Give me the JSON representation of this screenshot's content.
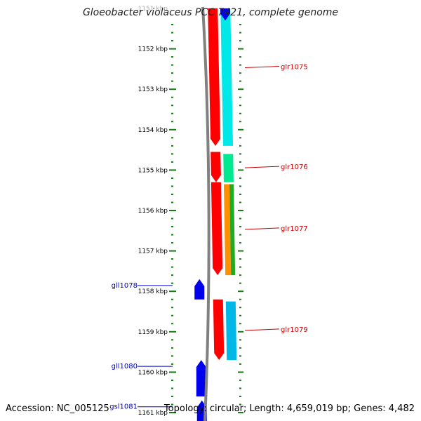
{
  "title": "Gloeobacter violaceus PCC 7421, complete genome",
  "accession": "Accession: NC_005125",
  "summary": "Topology: circular; Length: 4,659,019 bp; Genes: 4,482",
  "colors": {
    "tick": "#1a7a1a",
    "backbone": "#808080",
    "forward_label": "#cc0000",
    "reverse_label": "#0000bb",
    "forward_gene": "#ff0000",
    "reverse_gene": "#0000ee"
  },
  "ruler": [
    {
      "kbp": 1151,
      "label": "1151 kbp"
    },
    {
      "kbp": 1152,
      "label": "1152 kbp"
    },
    {
      "kbp": 1153,
      "label": "1153 kbp"
    },
    {
      "kbp": 1154,
      "label": "1154 kbp"
    },
    {
      "kbp": 1155,
      "label": "1155 kbp"
    },
    {
      "kbp": 1156,
      "label": "1156 kbp"
    },
    {
      "kbp": 1157,
      "label": "1157 kbp"
    },
    {
      "kbp": 1158,
      "label": "1158 kbp"
    },
    {
      "kbp": 1159,
      "label": "1159 kbp"
    },
    {
      "kbp": 1160,
      "label": "1160 kbp"
    },
    {
      "kbp": 1161,
      "label": "1161 kbp"
    }
  ],
  "genes": [
    {
      "name": "glr1075",
      "strand": "+",
      "start_kbp": 1150.5,
      "end_kbp": 1154.4,
      "color": "#ff0000",
      "feature_color": "#00e8e8"
    },
    {
      "name": "glr1076",
      "strand": "+",
      "start_kbp": 1154.55,
      "end_kbp": 1155.3,
      "color": "#ff0000",
      "feature_color": "#00e890"
    },
    {
      "name": "glr1077",
      "strand": "+",
      "start_kbp": 1155.3,
      "end_kbp": 1157.6,
      "color": "#ff0000",
      "feature_color": "#ff9000",
      "feature_color2": "#22aa22"
    },
    {
      "name": "gll1078",
      "strand": "-",
      "start_kbp": 1157.7,
      "end_kbp": 1158.2,
      "color": "#0000ee"
    },
    {
      "name": "glr1079",
      "strand": "+",
      "start_kbp": 1158.2,
      "end_kbp": 1159.7,
      "color": "#ff0000",
      "feature_color": "#00b8e8"
    },
    {
      "name": "gll1080",
      "strand": "-",
      "start_kbp": 1159.7,
      "end_kbp": 1160.6,
      "color": "#0000ee"
    },
    {
      "name": "gsl1081",
      "strand": "-",
      "start_kbp": 1160.7,
      "end_kbp": 1161.3,
      "color": "#0000ee"
    }
  ],
  "top_reverse_gene": {
    "start_kbp": 1150.5,
    "end_kbp": 1151.3,
    "color": "#0000ee"
  }
}
